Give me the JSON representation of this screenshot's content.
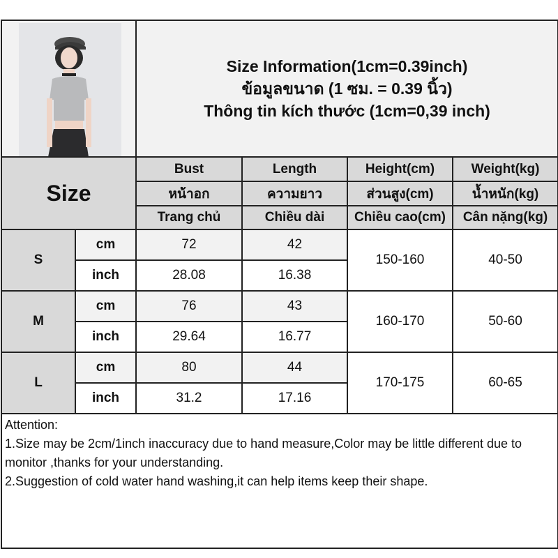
{
  "title_lines": [
    "Size Information(1cm=0.39inch)",
    "ข้อมูลขนาด (1 ซม. = 0.39 นิ้ว)",
    "Thông tin kích thước (1cm=0,39 inch)"
  ],
  "size_label": "Size",
  "columns": [
    {
      "en": "Bust",
      "th": "หน้าอก",
      "vi": "Trang chủ"
    },
    {
      "en": "Length",
      "th": "ความยาว",
      "vi": "Chiều dài"
    },
    {
      "en": "Height(cm)",
      "th": "ส่วนสูง(cm)",
      "vi": "Chiều cao(cm)"
    },
    {
      "en": "Weight(kg)",
      "th": "น้ำหนัก(kg)",
      "vi": "Cân nặng(kg)"
    }
  ],
  "units": {
    "cm": "cm",
    "inch": "inch"
  },
  "sizes": [
    {
      "size": "S",
      "bust_cm": "72",
      "length_cm": "42",
      "bust_inch": "28.08",
      "length_inch": "16.38",
      "height": "150-160",
      "weight": "40-50"
    },
    {
      "size": "M",
      "bust_cm": "76",
      "length_cm": "43",
      "bust_inch": "29.64",
      "length_inch": "16.77",
      "height": "160-170",
      "weight": "50-60"
    },
    {
      "size": "L",
      "bust_cm": "80",
      "length_cm": "44",
      "bust_inch": "31.2",
      "length_inch": "17.16",
      "height": "170-175",
      "weight": "60-65"
    }
  ],
  "attention": {
    "heading": "Attention:",
    "note1": "1.Size may be 2cm/1inch inaccuracy due to hand measure,Color may be little different due to monitor ,thanks for your understanding.",
    "note2": "2.Suggestion of cold water hand washing,it can help items keep their shape."
  },
  "colors": {
    "header_bg": "#d9d9d9",
    "cm_row_bg": "#f2f2f2",
    "border": "#222222"
  }
}
